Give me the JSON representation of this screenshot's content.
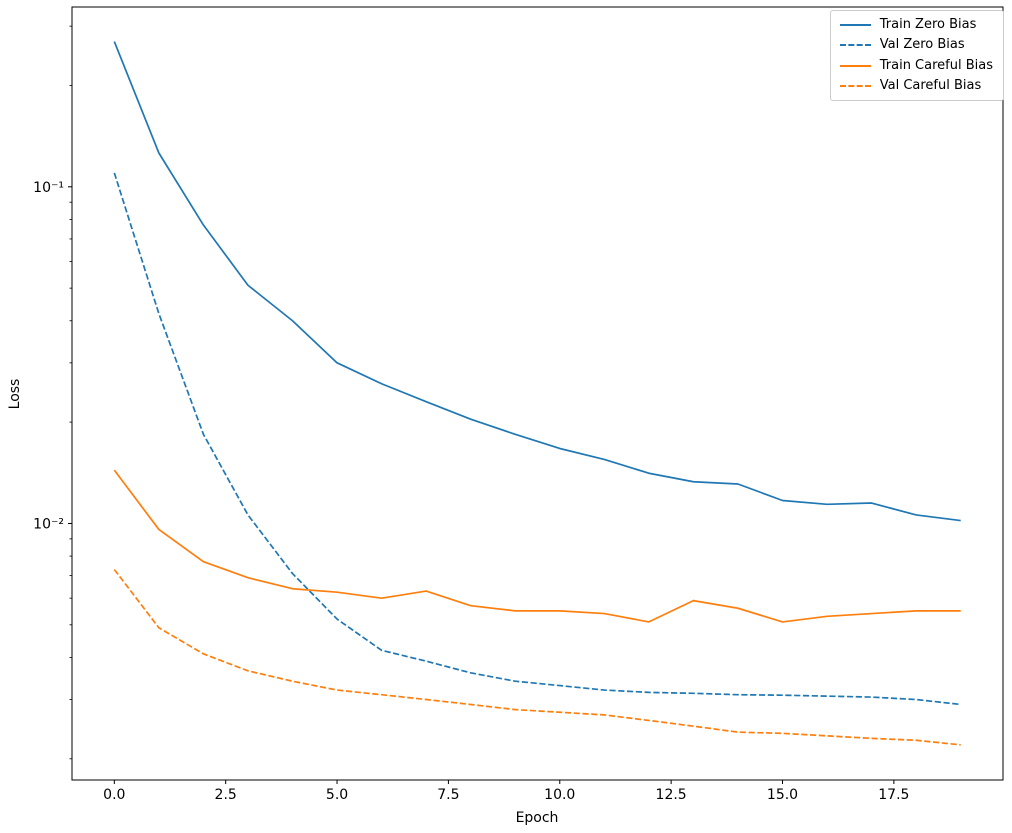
{
  "figure": {
    "background": "#ffffff",
    "spine_color": "#000000"
  },
  "chart_data": {
    "type": "line",
    "title": "",
    "xlabel": "Epoch",
    "ylabel": "Loss",
    "x_scale": "linear",
    "y_scale": "log",
    "xlim": [
      -0.95,
      19.95
    ],
    "ylim": [
      0.00173,
      0.342
    ],
    "grid": false,
    "legend_position": "upper right",
    "x_ticks": [
      0,
      2.5,
      5,
      7.5,
      10,
      12.5,
      15,
      17.5
    ],
    "x_tick_labels": [
      "0.0",
      "2.5",
      "5.0",
      "7.5",
      "10.0",
      "12.5",
      "15.0",
      "17.5"
    ],
    "y_ticks": [
      0.1,
      0.01
    ],
    "y_tick_labels": [
      "10⁻¹",
      "10⁻²"
    ],
    "x": [
      0,
      1,
      2,
      3,
      4,
      5,
      6,
      7,
      8,
      9,
      10,
      11,
      12,
      13,
      14,
      15,
      16,
      17,
      18,
      19
    ],
    "series": [
      {
        "name": "Train Zero Bias",
        "color": "#1f77b4",
        "style": "solid",
        "values": [
          0.27,
          0.126,
          0.077,
          0.051,
          0.04,
          0.03,
          0.026,
          0.023,
          0.0204,
          0.0184,
          0.0167,
          0.0155,
          0.0141,
          0.0133,
          0.0131,
          0.0117,
          0.0114,
          0.0115,
          0.0106,
          0.0102
        ]
      },
      {
        "name": "Val Zero Bias",
        "color": "#1f77b4",
        "style": "dashed",
        "values": [
          0.11,
          0.042,
          0.0184,
          0.0106,
          0.0071,
          0.0052,
          0.0042,
          0.0039,
          0.0036,
          0.0034,
          0.0033,
          0.0032,
          0.00315,
          0.00313,
          0.0031,
          0.00309,
          0.00307,
          0.00305,
          0.003,
          0.0029
        ]
      },
      {
        "name": "Train Careful Bias",
        "color": "#ff7f0e",
        "style": "solid",
        "values": [
          0.0144,
          0.0096,
          0.0077,
          0.0069,
          0.0064,
          0.00625,
          0.006,
          0.0063,
          0.0057,
          0.0055,
          0.0055,
          0.0054,
          0.0051,
          0.0059,
          0.0056,
          0.0051,
          0.0053,
          0.0054,
          0.0055,
          0.0055
        ]
      },
      {
        "name": "Val Careful Bias",
        "color": "#ff7f0e",
        "style": "dashed",
        "values": [
          0.0073,
          0.0049,
          0.0041,
          0.00365,
          0.0034,
          0.0032,
          0.0031,
          0.003,
          0.0029,
          0.0028,
          0.00275,
          0.0027,
          0.0026,
          0.0025,
          0.0024,
          0.00238,
          0.00234,
          0.0023,
          0.00227,
          0.0022
        ]
      }
    ]
  }
}
